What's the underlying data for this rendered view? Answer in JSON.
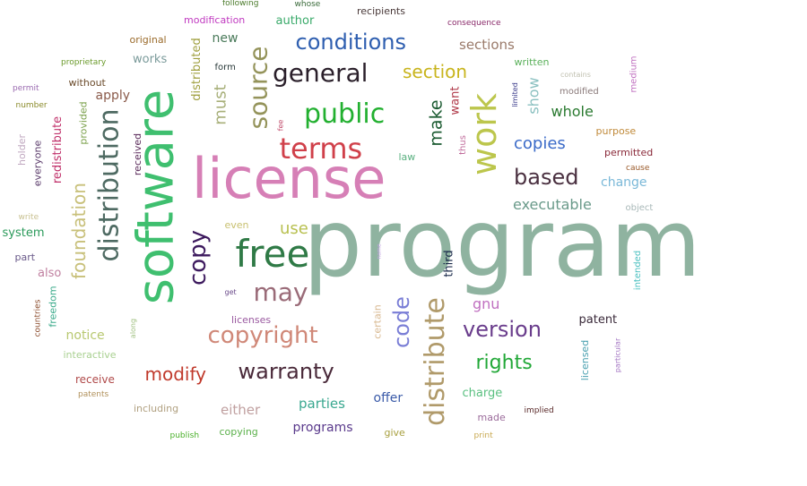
{
  "words": [
    {
      "text": "program",
      "color": "#8fb3a0"
    },
    {
      "text": "license",
      "color": "#d67fb6"
    },
    {
      "text": "software",
      "color": "#3fbf6f"
    },
    {
      "text": "free",
      "color": "#2f7a46"
    },
    {
      "text": "distribution",
      "color": "#4e6a62"
    },
    {
      "text": "work",
      "color": "#bcc64c"
    },
    {
      "text": "distribute",
      "color": "#b09a6a"
    },
    {
      "text": "terms",
      "color": "#d0404a"
    },
    {
      "text": "public",
      "color": "#22b030"
    },
    {
      "text": "source",
      "color": "#94935a"
    },
    {
      "text": "general",
      "color": "#2a1f2a"
    },
    {
      "text": "copy",
      "color": "#3d1a5e"
    },
    {
      "text": "may",
      "color": "#9a6b78"
    },
    {
      "text": "copyright",
      "color": "#d08878"
    },
    {
      "text": "conditions",
      "color": "#2f5fb0"
    },
    {
      "text": "code",
      "color": "#7a7ed6"
    },
    {
      "text": "version",
      "color": "#6a3d8c"
    },
    {
      "text": "warranty",
      "color": "#4a2a3a"
    },
    {
      "text": "based",
      "color": "#4a3040"
    },
    {
      "text": "section",
      "color": "#c8b41c"
    },
    {
      "text": "rights",
      "color": "#22a838"
    },
    {
      "text": "foundation",
      "color": "#c8c07a"
    },
    {
      "text": "modify",
      "color": "#c0392b"
    },
    {
      "text": "make",
      "color": "#1a5a30"
    },
    {
      "text": "copies",
      "color": "#3a6ac8"
    },
    {
      "text": "must",
      "color": "#a8b07a"
    },
    {
      "text": "use",
      "color": "#b8c050"
    },
    {
      "text": "executable",
      "color": "#6a9a8a"
    },
    {
      "text": "gnu",
      "color": "#c070c0"
    },
    {
      "text": "whole",
      "color": "#2a7a30"
    },
    {
      "text": "show",
      "color": "#8ac0c0"
    },
    {
      "text": "sections",
      "color": "#9a7a6a"
    },
    {
      "text": "parties",
      "color": "#3aa890"
    },
    {
      "text": "either",
      "color": "#c0a0a0"
    },
    {
      "text": "programs",
      "color": "#5a3a8c"
    },
    {
      "text": "redistribute",
      "color": "#c0306a"
    },
    {
      "text": "distributed",
      "color": "#a0a040"
    },
    {
      "text": "new",
      "color": "#4a7a5a"
    },
    {
      "text": "notice",
      "color": "#b8c870"
    },
    {
      "text": "change",
      "color": "#7ab8d8"
    },
    {
      "text": "offer",
      "color": "#3a5aa8"
    },
    {
      "text": "patent",
      "color": "#3a2a3a"
    },
    {
      "text": "works",
      "color": "#7a9a9a"
    },
    {
      "text": "apply",
      "color": "#8a5a4a"
    },
    {
      "text": "received",
      "color": "#5a2a5a"
    },
    {
      "text": "charge",
      "color": "#5ac080"
    },
    {
      "text": "system",
      "color": "#2a9a5a"
    },
    {
      "text": "author",
      "color": "#3aaa6a"
    },
    {
      "text": "certain",
      "color": "#d8b890"
    },
    {
      "text": "licensed",
      "color": "#4aa0b0"
    },
    {
      "text": "third",
      "color": "#1a2a4a"
    },
    {
      "text": "modification",
      "color": "#c03ac0"
    },
    {
      "text": "also",
      "color": "#c080a0"
    },
    {
      "text": "original",
      "color": "#9a6a2a"
    },
    {
      "text": "want",
      "color": "#b03a4a"
    },
    {
      "text": "receive",
      "color": "#b04a4a"
    },
    {
      "text": "interactive",
      "color": "#a8d090"
    },
    {
      "text": "including",
      "color": "#b0a080"
    },
    {
      "text": "licenses",
      "color": "#9a5aa0"
    },
    {
      "text": "copying",
      "color": "#5ab04a"
    },
    {
      "text": "made",
      "color": "#9a6a9a"
    },
    {
      "text": "permitted",
      "color": "#8a2a3a"
    },
    {
      "text": "modified",
      "color": "#8a7a7a"
    },
    {
      "text": "purpose",
      "color": "#c08a3a"
    },
    {
      "text": "written",
      "color": "#5ab05a"
    },
    {
      "text": "law",
      "color": "#5ab080"
    },
    {
      "text": "give",
      "color": "#a8a040"
    },
    {
      "text": "provided",
      "color": "#7aa04a"
    },
    {
      "text": "freedom",
      "color": "#3aaa8a"
    },
    {
      "text": "everyone",
      "color": "#5a3a6a"
    },
    {
      "text": "without",
      "color": "#6a4a2a"
    },
    {
      "text": "even",
      "color": "#c8c070"
    },
    {
      "text": "form",
      "color": "#2a3a3a"
    },
    {
      "text": "part",
      "color": "#6a5a8a"
    },
    {
      "text": "holder",
      "color": "#c0a8c0"
    },
    {
      "text": "thus",
      "color": "#c06a9a"
    },
    {
      "text": "medium",
      "color": "#c070c0"
    },
    {
      "text": "intended",
      "color": "#4ac0c0"
    },
    {
      "text": "object",
      "color": "#a8b8b8"
    },
    {
      "text": "recipients",
      "color": "#4a3a3a"
    },
    {
      "text": "proprietary",
      "color": "#6a9a2a"
    },
    {
      "text": "number",
      "color": "#8a8a2a"
    },
    {
      "text": "permit",
      "color": "#9a6ab0"
    },
    {
      "text": "write",
      "color": "#c8c090"
    },
    {
      "text": "countries",
      "color": "#8a4a2a"
    },
    {
      "text": "along",
      "color": "#a0c080"
    },
    {
      "text": "patents",
      "color": "#b0905a"
    },
    {
      "text": "publish",
      "color": "#4ab02a"
    },
    {
      "text": "print",
      "color": "#c8a850"
    },
    {
      "text": "implied",
      "color": "#5a2a2a"
    },
    {
      "text": "particular",
      "color": "#a070c0"
    },
    {
      "text": "limited",
      "color": "#3a3a8a"
    },
    {
      "text": "contains",
      "color": "#c0c0b0"
    },
    {
      "text": "cause",
      "color": "#9a5a2a"
    },
    {
      "text": "consequence",
      "color": "#8a2a6a"
    },
    {
      "text": "whose",
      "color": "#3a6a3a"
    },
    {
      "text": "following",
      "color": "#4a7a2a"
    },
    {
      "text": "fee",
      "color": "#c04a6a"
    },
    {
      "text": "get",
      "color": "#6a4a8a"
    },
    {
      "text": "name",
      "color": "#c0a0e0"
    }
  ]
}
